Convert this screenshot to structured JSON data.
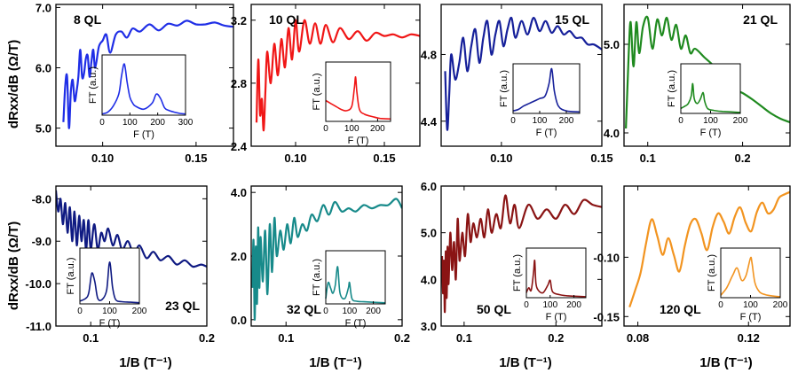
{
  "figure": {
    "ylabel_top": "dRxx/dB (Ω/T)",
    "ylabel_bottom": "dRxx/dB (Ω/T)",
    "xlabel": "1/B (T⁻¹)"
  },
  "chart_data": [
    {
      "type": "line",
      "label": "8 QL",
      "color": "#1f2ee6",
      "label_pos": "top-left",
      "xlim": [
        0.075,
        0.17
      ],
      "ylim": [
        4.7,
        7.05
      ],
      "xticks": [
        0.1,
        0.15
      ],
      "xtick_labels": [
        "0.10",
        "0.15"
      ],
      "yticks": [
        5.0,
        6.0,
        7.0
      ],
      "ytick_labels": [
        "5.0",
        "6.0",
        "7.0"
      ],
      "x": [
        0.079,
        0.08,
        0.081,
        0.082,
        0.083,
        0.084,
        0.085,
        0.086,
        0.087,
        0.088,
        0.089,
        0.09,
        0.091,
        0.092,
        0.093,
        0.094,
        0.095,
        0.096,
        0.098,
        0.1,
        0.102,
        0.104,
        0.107,
        0.11,
        0.113,
        0.116,
        0.12,
        0.125,
        0.13,
        0.135,
        0.14,
        0.145,
        0.15,
        0.155,
        0.16,
        0.165,
        0.17
      ],
      "y": [
        5.1,
        5.7,
        5.85,
        5.0,
        5.6,
        5.8,
        5.45,
        5.6,
        5.85,
        6.3,
        5.85,
        5.9,
        6.15,
        6.2,
        5.85,
        6.1,
        6.3,
        6.0,
        6.35,
        6.45,
        6.55,
        6.25,
        6.55,
        6.6,
        6.5,
        6.65,
        6.6,
        6.72,
        6.62,
        6.73,
        6.7,
        6.78,
        6.72,
        6.72,
        6.75,
        6.7,
        6.68
      ],
      "inset": {
        "xlim": [
          0,
          300
        ],
        "ylim": [
          0,
          1
        ],
        "xticks": [
          0,
          100,
          200,
          300
        ],
        "xtick_labels": [
          "0",
          "100",
          "200",
          "300"
        ],
        "xlabel": "F (T)",
        "ylabel": "FT (a.u.)",
        "x": [
          0,
          20,
          40,
          60,
          70,
          80,
          90,
          100,
          110,
          120,
          150,
          180,
          195,
          210,
          225,
          240,
          260,
          280,
          300
        ],
        "y": [
          0.02,
          0.05,
          0.15,
          0.35,
          0.65,
          0.85,
          0.55,
          0.3,
          0.2,
          0.15,
          0.1,
          0.2,
          0.35,
          0.28,
          0.12,
          0.08,
          0.05,
          0.03,
          0.02
        ]
      }
    },
    {
      "type": "line",
      "label": "10 QL",
      "color": "#f01616",
      "label_pos": "top-left",
      "xlim": [
        0.075,
        0.17
      ],
      "ylim": [
        2.4,
        3.3
      ],
      "xticks": [
        0.1,
        0.15
      ],
      "xtick_labels": [
        "0.10",
        "0.15"
      ],
      "yticks": [
        2.4,
        2.8,
        3.2
      ],
      "ytick_labels": [
        "2.4",
        "2.8",
        "3.2"
      ],
      "x": [
        0.078,
        0.079,
        0.08,
        0.081,
        0.082,
        0.083,
        0.084,
        0.086,
        0.088,
        0.09,
        0.092,
        0.094,
        0.096,
        0.098,
        0.1,
        0.102,
        0.105,
        0.108,
        0.111,
        0.114,
        0.117,
        0.121,
        0.125,
        0.13,
        0.135,
        0.14,
        0.145,
        0.15,
        0.155,
        0.16,
        0.165,
        0.17
      ],
      "y": [
        2.55,
        2.95,
        2.6,
        2.7,
        2.5,
        2.75,
        3.0,
        2.8,
        3.05,
        2.85,
        3.08,
        2.9,
        3.15,
        2.95,
        3.2,
        3.0,
        3.2,
        3.05,
        3.18,
        3.05,
        3.17,
        3.06,
        3.15,
        3.08,
        3.13,
        3.07,
        3.12,
        3.1,
        3.11,
        3.09,
        3.11,
        3.1
      ],
      "inset": {
        "xlim": [
          0,
          250
        ],
        "ylim": [
          0,
          1
        ],
        "xticks": [
          0,
          100,
          200
        ],
        "xtick_labels": [
          "0",
          "100",
          "200"
        ],
        "xlabel": "F (T)",
        "ylabel": "FT (a.u.)",
        "x": [
          0,
          20,
          40,
          60,
          80,
          100,
          110,
          115,
          120,
          130,
          150,
          180,
          210,
          250
        ],
        "y": [
          0.35,
          0.3,
          0.25,
          0.2,
          0.18,
          0.25,
          0.55,
          0.75,
          0.5,
          0.2,
          0.12,
          0.08,
          0.05,
          0.04
        ]
      }
    },
    {
      "type": "line",
      "label": "15 QL",
      "color": "#16209a",
      "label_pos": "top-right",
      "xlim": [
        0.07,
        0.15
      ],
      "ylim": [
        4.25,
        5.1
      ],
      "xticks": [
        0.1,
        0.15
      ],
      "xtick_labels": [
        "0.10",
        "0.15"
      ],
      "yticks": [
        4.4,
        4.8
      ],
      "ytick_labels": [
        "4.4",
        "4.8"
      ],
      "x": [
        0.072,
        0.073,
        0.074,
        0.075,
        0.077,
        0.079,
        0.081,
        0.083,
        0.085,
        0.087,
        0.089,
        0.091,
        0.093,
        0.095,
        0.097,
        0.099,
        0.101,
        0.103,
        0.105,
        0.107,
        0.11,
        0.113,
        0.116,
        0.119,
        0.122,
        0.125,
        0.128,
        0.131,
        0.134,
        0.137,
        0.14,
        0.143,
        0.146,
        0.15
      ],
      "y": [
        4.7,
        4.35,
        4.55,
        4.8,
        4.65,
        4.75,
        4.9,
        4.7,
        4.85,
        4.95,
        4.75,
        4.9,
        5.0,
        4.8,
        4.92,
        5.0,
        4.85,
        4.95,
        5.02,
        4.9,
        5.0,
        4.92,
        5.02,
        4.94,
        5.0,
        4.93,
        4.97,
        4.92,
        4.94,
        4.9,
        4.9,
        4.86,
        4.86,
        4.83
      ],
      "inset": {
        "xlim": [
          0,
          250
        ],
        "ylim": [
          0,
          1
        ],
        "xticks": [
          0,
          100,
          200
        ],
        "xtick_labels": [
          "0",
          "100",
          "200"
        ],
        "xlabel": "F (T)",
        "ylabel": "FT (a.u.)",
        "x": [
          0,
          20,
          40,
          60,
          80,
          100,
          120,
          135,
          145,
          155,
          170,
          200,
          250
        ],
        "y": [
          0.05,
          0.08,
          0.15,
          0.2,
          0.25,
          0.3,
          0.35,
          0.6,
          0.9,
          0.45,
          0.15,
          0.05,
          0.03
        ]
      }
    },
    {
      "type": "line",
      "label": "21 QL",
      "color": "#1f8a1f",
      "label_pos": "top-right",
      "xlim": [
        0.075,
        0.25
      ],
      "ylim": [
        3.85,
        5.45
      ],
      "xticks": [
        0.1,
        0.2
      ],
      "xtick_labels": [
        "0.1",
        "0.2"
      ],
      "yticks": [
        4.0,
        5.0
      ],
      "ytick_labels": [
        "4.0",
        "5.0"
      ],
      "x": [
        0.077,
        0.08,
        0.082,
        0.085,
        0.088,
        0.091,
        0.095,
        0.1,
        0.105,
        0.11,
        0.115,
        0.12,
        0.125,
        0.13,
        0.135,
        0.14,
        0.145,
        0.15,
        0.16,
        0.17,
        0.18,
        0.19,
        0.2,
        0.21,
        0.22,
        0.23,
        0.24,
        0.25
      ],
      "y": [
        4.05,
        4.9,
        5.25,
        4.75,
        5.25,
        4.9,
        5.2,
        5.3,
        4.95,
        5.28,
        5.1,
        5.3,
        5.05,
        5.22,
        4.95,
        5.1,
        4.9,
        4.95,
        4.85,
        4.75,
        4.6,
        4.5,
        4.45,
        4.38,
        4.3,
        4.22,
        4.16,
        4.12
      ],
      "inset": {
        "xlim": [
          0,
          200
        ],
        "ylim": [
          0,
          1
        ],
        "xticks": [
          0,
          100,
          200
        ],
        "xtick_labels": [
          "0",
          "100",
          "200"
        ],
        "xlabel": "F (T)",
        "ylabel": "FT (a.u.)",
        "x": [
          0,
          15,
          25,
          35,
          40,
          45,
          55,
          65,
          75,
          80,
          90,
          110,
          140,
          170,
          200
        ],
        "y": [
          0.1,
          0.15,
          0.2,
          0.35,
          0.6,
          0.3,
          0.2,
          0.28,
          0.42,
          0.25,
          0.1,
          0.06,
          0.04,
          0.03,
          0.02
        ]
      }
    },
    {
      "type": "line",
      "label": "23 QL",
      "color": "#0f1a82",
      "label_pos": "bottom-right",
      "xlim": [
        0.07,
        0.2
      ],
      "ylim": [
        -11.0,
        -7.7
      ],
      "xticks": [
        0.1,
        0.2
      ],
      "xtick_labels": [
        "0.1",
        "0.2"
      ],
      "yticks": [
        -11.0,
        -10.0,
        -9.0,
        -8.0
      ],
      "ytick_labels": [
        "-11.0",
        "-10.0",
        "-9.0",
        "-8.0"
      ],
      "x": [
        0.07,
        0.072,
        0.074,
        0.076,
        0.078,
        0.08,
        0.082,
        0.084,
        0.086,
        0.088,
        0.09,
        0.092,
        0.094,
        0.096,
        0.098,
        0.1,
        0.103,
        0.106,
        0.109,
        0.112,
        0.115,
        0.119,
        0.123,
        0.127,
        0.132,
        0.137,
        0.142,
        0.148,
        0.154,
        0.16,
        0.167,
        0.174,
        0.181,
        0.188,
        0.195,
        0.2
      ],
      "y": [
        -7.8,
        -8.3,
        -8.0,
        -8.6,
        -8.1,
        -8.8,
        -8.2,
        -9.0,
        -8.3,
        -9.1,
        -8.4,
        -9.0,
        -8.5,
        -9.2,
        -8.5,
        -9.2,
        -8.6,
        -9.2,
        -8.8,
        -9.0,
        -8.7,
        -9.1,
        -8.85,
        -9.2,
        -9.0,
        -9.3,
        -9.1,
        -9.4,
        -9.25,
        -9.45,
        -9.35,
        -9.55,
        -9.45,
        -9.6,
        -9.55,
        -9.6
      ],
      "inset": {
        "xlim": [
          0,
          200
        ],
        "ylim": [
          0,
          1
        ],
        "xticks": [
          0,
          100,
          200
        ],
        "xtick_labels": [
          "0",
          "100",
          "200"
        ],
        "xlabel": "F (T)",
        "ylabel": "FT (a.u.)",
        "x": [
          0,
          20,
          30,
          40,
          50,
          60,
          75,
          90,
          100,
          110,
          120,
          140,
          170,
          200
        ],
        "y": [
          0.05,
          0.1,
          0.2,
          0.55,
          0.4,
          0.1,
          0.08,
          0.25,
          0.75,
          0.3,
          0.08,
          0.04,
          0.03,
          0.02
        ]
      }
    },
    {
      "type": "line",
      "label": "32 QL",
      "color": "#178a8a",
      "label_pos": "bottom-left",
      "xlim": [
        0.07,
        0.2
      ],
      "ylim": [
        -0.2,
        4.2
      ],
      "xticks": [
        0.1,
        0.2
      ],
      "xtick_labels": [
        "0.1",
        "0.2"
      ],
      "yticks": [
        0.0,
        2.0,
        4.0
      ],
      "ytick_labels": [
        "0.0",
        "2.0",
        "4.0"
      ],
      "x": [
        0.071,
        0.072,
        0.073,
        0.074,
        0.075,
        0.076,
        0.077,
        0.078,
        0.08,
        0.082,
        0.084,
        0.086,
        0.088,
        0.09,
        0.092,
        0.095,
        0.098,
        0.101,
        0.104,
        0.107,
        0.11,
        0.114,
        0.118,
        0.122,
        0.127,
        0.132,
        0.137,
        0.142,
        0.148,
        0.154,
        0.16,
        0.167,
        0.174,
        0.181,
        0.188,
        0.195,
        0.2
      ],
      "y": [
        1.0,
        2.5,
        0.0,
        2.3,
        0.5,
        2.9,
        1.0,
        2.6,
        1.2,
        2.8,
        0.8,
        3.0,
        1.5,
        3.2,
        2.0,
        2.8,
        2.2,
        3.0,
        2.4,
        3.2,
        2.6,
        3.0,
        2.8,
        3.3,
        3.1,
        3.6,
        3.3,
        3.7,
        3.4,
        3.5,
        3.4,
        3.6,
        3.5,
        3.6,
        3.6,
        3.8,
        3.5
      ],
      "inset": {
        "xlim": [
          0,
          250
        ],
        "ylim": [
          0,
          1
        ],
        "xticks": [
          0,
          100,
          200
        ],
        "xtick_labels": [
          "0",
          "100",
          "200"
        ],
        "xlabel": "F (T)",
        "ylabel": "FT (a.u.)",
        "x": [
          0,
          10,
          20,
          30,
          40,
          50,
          60,
          80,
          95,
          100,
          110,
          130,
          160,
          200,
          250
        ],
        "y": [
          0.1,
          0.4,
          0.3,
          0.2,
          0.35,
          0.7,
          0.2,
          0.1,
          0.3,
          0.4,
          0.1,
          0.05,
          0.04,
          0.03,
          0.02
        ]
      }
    },
    {
      "type": "line",
      "label": "50 QL",
      "color": "#8a1414",
      "label_pos": "bottom-left",
      "xlim": [
        0.075,
        0.25
      ],
      "ylim": [
        3.0,
        6.0
      ],
      "xticks": [
        0.1,
        0.2
      ],
      "xtick_labels": [
        "0.1",
        "0.2"
      ],
      "yticks": [
        3.0,
        4.0,
        5.0,
        6.0
      ],
      "ytick_labels": [
        "3.0",
        "4.0",
        "5.0",
        "6.0"
      ],
      "x": [
        0.076,
        0.077,
        0.078,
        0.079,
        0.08,
        0.081,
        0.082,
        0.083,
        0.085,
        0.087,
        0.089,
        0.091,
        0.093,
        0.095,
        0.098,
        0.101,
        0.104,
        0.107,
        0.11,
        0.114,
        0.118,
        0.122,
        0.126,
        0.13,
        0.135,
        0.14,
        0.145,
        0.15,
        0.155,
        0.16,
        0.17,
        0.18,
        0.19,
        0.2,
        0.21,
        0.22,
        0.23,
        0.24,
        0.25
      ],
      "y": [
        4.5,
        3.7,
        4.4,
        3.3,
        4.6,
        3.6,
        4.7,
        3.9,
        5.0,
        4.2,
        4.8,
        4.0,
        5.3,
        4.4,
        5.0,
        4.5,
        5.4,
        4.8,
        5.2,
        4.9,
        5.3,
        4.9,
        5.5,
        5.0,
        5.4,
        5.1,
        5.8,
        5.2,
        5.6,
        5.1,
        5.6,
        5.3,
        5.5,
        5.3,
        5.6,
        5.4,
        5.7,
        5.6,
        5.55
      ],
      "inset": {
        "xlim": [
          0,
          250
        ],
        "ylim": [
          0,
          1
        ],
        "xticks": [
          0,
          100,
          200
        ],
        "xtick_labels": [
          "0",
          "100",
          "200"
        ],
        "xlabel": "F (T)",
        "ylabel": "FT (a.u.)",
        "x": [
          0,
          10,
          20,
          30,
          35,
          40,
          50,
          70,
          90,
          100,
          110,
          140,
          170,
          200,
          250
        ],
        "y": [
          0.1,
          0.2,
          0.15,
          0.5,
          0.75,
          0.3,
          0.15,
          0.1,
          0.25,
          0.35,
          0.12,
          0.06,
          0.04,
          0.03,
          0.02
        ]
      }
    },
    {
      "type": "line",
      "label": "120 QL",
      "color": "#f29420",
      "label_pos": "bottom-left",
      "xlim": [
        0.075,
        0.135
      ],
      "ylim": [
        -0.158,
        -0.04
      ],
      "xticks": [
        0.08,
        0.12
      ],
      "xtick_labels": [
        "0.08",
        "0.12"
      ],
      "yticks": [
        -0.15,
        -0.1
      ],
      "ytick_labels": [
        "-0.15",
        "-0.10"
      ],
      "x": [
        0.077,
        0.079,
        0.081,
        0.083,
        0.085,
        0.087,
        0.089,
        0.091,
        0.093,
        0.095,
        0.097,
        0.099,
        0.101,
        0.103,
        0.105,
        0.107,
        0.109,
        0.111,
        0.113,
        0.115,
        0.117,
        0.119,
        0.121,
        0.123,
        0.125,
        0.127,
        0.129,
        0.131,
        0.133,
        0.135
      ],
      "y": [
        -0.142,
        -0.128,
        -0.113,
        -0.088,
        -0.068,
        -0.082,
        -0.098,
        -0.084,
        -0.098,
        -0.112,
        -0.09,
        -0.072,
        -0.068,
        -0.08,
        -0.094,
        -0.075,
        -0.063,
        -0.07,
        -0.08,
        -0.066,
        -0.058,
        -0.071,
        -0.078,
        -0.062,
        -0.054,
        -0.063,
        -0.06,
        -0.05,
        -0.047,
        -0.045
      ],
      "inset": {
        "xlim": [
          0,
          200
        ],
        "ylim": [
          0,
          1
        ],
        "xticks": [
          0,
          100,
          200
        ],
        "xtick_labels": [
          "0",
          "100",
          "200"
        ],
        "xlabel": "F (T)",
        "ylabel": "FT (a.u.)",
        "x": [
          0,
          20,
          40,
          55,
          70,
          85,
          100,
          105,
          115,
          130,
          150,
          180,
          200
        ],
        "y": [
          0.05,
          0.2,
          0.45,
          0.6,
          0.35,
          0.45,
          0.8,
          0.7,
          0.3,
          0.12,
          0.06,
          0.03,
          0.02
        ]
      }
    }
  ]
}
